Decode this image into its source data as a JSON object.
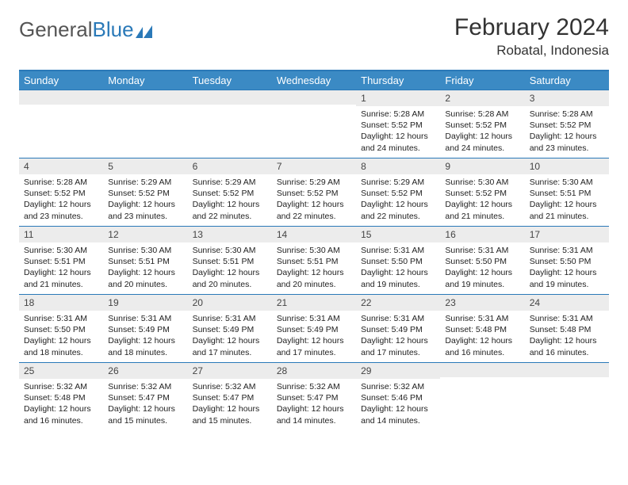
{
  "logo": {
    "text1": "General",
    "text2": "Blue"
  },
  "title": "February 2024",
  "location": "Robatal, Indonesia",
  "colors": {
    "header_bg": "#3b8ac4",
    "border": "#2a79b8",
    "daynum_bg": "#ececec"
  },
  "weekdays": [
    "Sunday",
    "Monday",
    "Tuesday",
    "Wednesday",
    "Thursday",
    "Friday",
    "Saturday"
  ],
  "weeks": [
    [
      {
        "n": "",
        "lines": [
          "",
          "",
          "",
          ""
        ]
      },
      {
        "n": "",
        "lines": [
          "",
          "",
          "",
          ""
        ]
      },
      {
        "n": "",
        "lines": [
          "",
          "",
          "",
          ""
        ]
      },
      {
        "n": "",
        "lines": [
          "",
          "",
          "",
          ""
        ]
      },
      {
        "n": "1",
        "lines": [
          "Sunrise: 5:28 AM",
          "Sunset: 5:52 PM",
          "Daylight: 12 hours",
          "and 24 minutes."
        ]
      },
      {
        "n": "2",
        "lines": [
          "Sunrise: 5:28 AM",
          "Sunset: 5:52 PM",
          "Daylight: 12 hours",
          "and 24 minutes."
        ]
      },
      {
        "n": "3",
        "lines": [
          "Sunrise: 5:28 AM",
          "Sunset: 5:52 PM",
          "Daylight: 12 hours",
          "and 23 minutes."
        ]
      }
    ],
    [
      {
        "n": "4",
        "lines": [
          "Sunrise: 5:28 AM",
          "Sunset: 5:52 PM",
          "Daylight: 12 hours",
          "and 23 minutes."
        ]
      },
      {
        "n": "5",
        "lines": [
          "Sunrise: 5:29 AM",
          "Sunset: 5:52 PM",
          "Daylight: 12 hours",
          "and 23 minutes."
        ]
      },
      {
        "n": "6",
        "lines": [
          "Sunrise: 5:29 AM",
          "Sunset: 5:52 PM",
          "Daylight: 12 hours",
          "and 22 minutes."
        ]
      },
      {
        "n": "7",
        "lines": [
          "Sunrise: 5:29 AM",
          "Sunset: 5:52 PM",
          "Daylight: 12 hours",
          "and 22 minutes."
        ]
      },
      {
        "n": "8",
        "lines": [
          "Sunrise: 5:29 AM",
          "Sunset: 5:52 PM",
          "Daylight: 12 hours",
          "and 22 minutes."
        ]
      },
      {
        "n": "9",
        "lines": [
          "Sunrise: 5:30 AM",
          "Sunset: 5:52 PM",
          "Daylight: 12 hours",
          "and 21 minutes."
        ]
      },
      {
        "n": "10",
        "lines": [
          "Sunrise: 5:30 AM",
          "Sunset: 5:51 PM",
          "Daylight: 12 hours",
          "and 21 minutes."
        ]
      }
    ],
    [
      {
        "n": "11",
        "lines": [
          "Sunrise: 5:30 AM",
          "Sunset: 5:51 PM",
          "Daylight: 12 hours",
          "and 21 minutes."
        ]
      },
      {
        "n": "12",
        "lines": [
          "Sunrise: 5:30 AM",
          "Sunset: 5:51 PM",
          "Daylight: 12 hours",
          "and 20 minutes."
        ]
      },
      {
        "n": "13",
        "lines": [
          "Sunrise: 5:30 AM",
          "Sunset: 5:51 PM",
          "Daylight: 12 hours",
          "and 20 minutes."
        ]
      },
      {
        "n": "14",
        "lines": [
          "Sunrise: 5:30 AM",
          "Sunset: 5:51 PM",
          "Daylight: 12 hours",
          "and 20 minutes."
        ]
      },
      {
        "n": "15",
        "lines": [
          "Sunrise: 5:31 AM",
          "Sunset: 5:50 PM",
          "Daylight: 12 hours",
          "and 19 minutes."
        ]
      },
      {
        "n": "16",
        "lines": [
          "Sunrise: 5:31 AM",
          "Sunset: 5:50 PM",
          "Daylight: 12 hours",
          "and 19 minutes."
        ]
      },
      {
        "n": "17",
        "lines": [
          "Sunrise: 5:31 AM",
          "Sunset: 5:50 PM",
          "Daylight: 12 hours",
          "and 19 minutes."
        ]
      }
    ],
    [
      {
        "n": "18",
        "lines": [
          "Sunrise: 5:31 AM",
          "Sunset: 5:50 PM",
          "Daylight: 12 hours",
          "and 18 minutes."
        ]
      },
      {
        "n": "19",
        "lines": [
          "Sunrise: 5:31 AM",
          "Sunset: 5:49 PM",
          "Daylight: 12 hours",
          "and 18 minutes."
        ]
      },
      {
        "n": "20",
        "lines": [
          "Sunrise: 5:31 AM",
          "Sunset: 5:49 PM",
          "Daylight: 12 hours",
          "and 17 minutes."
        ]
      },
      {
        "n": "21",
        "lines": [
          "Sunrise: 5:31 AM",
          "Sunset: 5:49 PM",
          "Daylight: 12 hours",
          "and 17 minutes."
        ]
      },
      {
        "n": "22",
        "lines": [
          "Sunrise: 5:31 AM",
          "Sunset: 5:49 PM",
          "Daylight: 12 hours",
          "and 17 minutes."
        ]
      },
      {
        "n": "23",
        "lines": [
          "Sunrise: 5:31 AM",
          "Sunset: 5:48 PM",
          "Daylight: 12 hours",
          "and 16 minutes."
        ]
      },
      {
        "n": "24",
        "lines": [
          "Sunrise: 5:31 AM",
          "Sunset: 5:48 PM",
          "Daylight: 12 hours",
          "and 16 minutes."
        ]
      }
    ],
    [
      {
        "n": "25",
        "lines": [
          "Sunrise: 5:32 AM",
          "Sunset: 5:48 PM",
          "Daylight: 12 hours",
          "and 16 minutes."
        ]
      },
      {
        "n": "26",
        "lines": [
          "Sunrise: 5:32 AM",
          "Sunset: 5:47 PM",
          "Daylight: 12 hours",
          "and 15 minutes."
        ]
      },
      {
        "n": "27",
        "lines": [
          "Sunrise: 5:32 AM",
          "Sunset: 5:47 PM",
          "Daylight: 12 hours",
          "and 15 minutes."
        ]
      },
      {
        "n": "28",
        "lines": [
          "Sunrise: 5:32 AM",
          "Sunset: 5:47 PM",
          "Daylight: 12 hours",
          "and 14 minutes."
        ]
      },
      {
        "n": "29",
        "lines": [
          "Sunrise: 5:32 AM",
          "Sunset: 5:46 PM",
          "Daylight: 12 hours",
          "and 14 minutes."
        ]
      },
      {
        "n": "",
        "lines": [
          "",
          "",
          "",
          ""
        ]
      },
      {
        "n": "",
        "lines": [
          "",
          "",
          "",
          ""
        ]
      }
    ]
  ]
}
